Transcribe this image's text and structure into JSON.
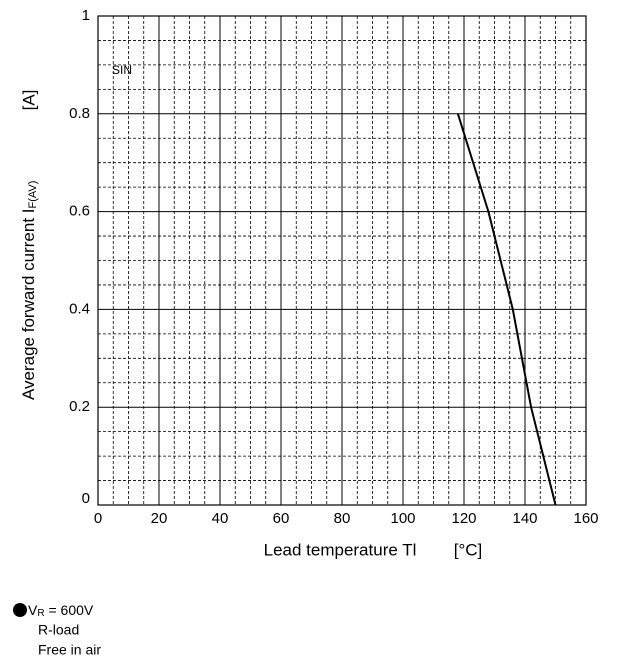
{
  "chart_data": {
    "type": "line",
    "x_label": "Lead temperature  Tl",
    "x_unit": "[°C]",
    "y_label": "Average forward current  I",
    "y_label_sub": "F(AV)",
    "y_unit": "[A]",
    "annotation": "SIN",
    "x": [
      118,
      128,
      136,
      142,
      150
    ],
    "series": [
      {
        "color": "#000000",
        "values": [
          0.8,
          0.6,
          0.4,
          0.2,
          0
        ]
      }
    ],
    "xlim": [
      0,
      160
    ],
    "xticks": [
      0,
      20,
      40,
      60,
      80,
      100,
      120,
      140,
      160
    ],
    "ylim": [
      0,
      1
    ],
    "yticks": [
      0,
      0.2,
      0.4,
      0.6,
      0.8,
      1
    ],
    "grid": true,
    "minor_grid": true,
    "conditions": [
      {
        "symbol": "V",
        "sub": "R",
        "rest": " = 600V"
      },
      "R-load",
      "Free in air"
    ]
  }
}
